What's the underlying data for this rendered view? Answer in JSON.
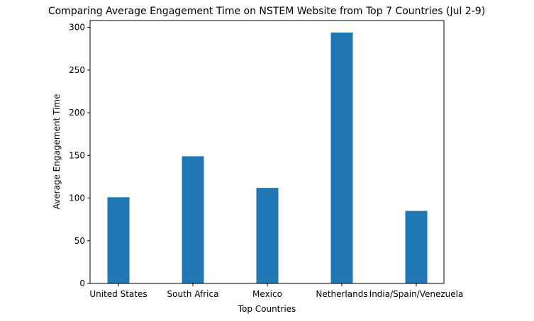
{
  "chart_data": {
    "type": "bar",
    "title": "Comparing Average Engagement Time on NSTEM Website from Top 7 Countries (Jul 2-9)",
    "xlabel": "Top Countries",
    "ylabel": "Average Engagement Time",
    "categories": [
      "United States",
      "South Africa",
      "Mexico",
      "Netherlands",
      "India/Spain/Venezuela"
    ],
    "values": [
      101,
      149,
      112,
      294,
      85
    ],
    "ylim": [
      0,
      308
    ],
    "yticks": [
      0,
      50,
      100,
      150,
      200,
      250,
      300
    ],
    "grid": false,
    "bar_color": "#1f77b4"
  }
}
